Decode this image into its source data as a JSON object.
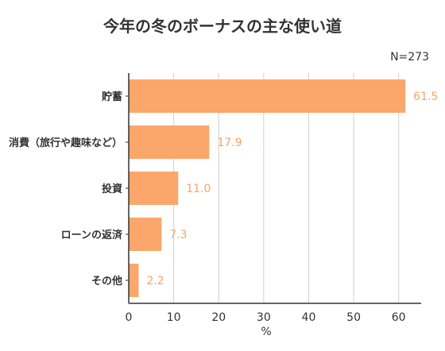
{
  "chart_data": {
    "type": "bar",
    "orientation": "horizontal",
    "title": "今年の冬のボーナスの主な使い道",
    "note": "N=273",
    "categories": [
      "貯蓄",
      "消費（旅行や趣味など）",
      "投資",
      "ローンの返済",
      "その他"
    ],
    "values": [
      61.5,
      17.9,
      11.0,
      7.3,
      2.2
    ],
    "value_labels": [
      "61.5",
      "17.9",
      "11.0",
      "7.3",
      "2.2"
    ],
    "xlabel": "%",
    "xlim": [
      0,
      65
    ],
    "xticks": [
      "0",
      "10",
      "20",
      "30",
      "40",
      "50",
      "60"
    ],
    "grid": true,
    "bar_color": "#FBA66A",
    "label_color": "#F4A46C",
    "axis_color": "#333333",
    "grid_color": "#D0D0D0"
  }
}
